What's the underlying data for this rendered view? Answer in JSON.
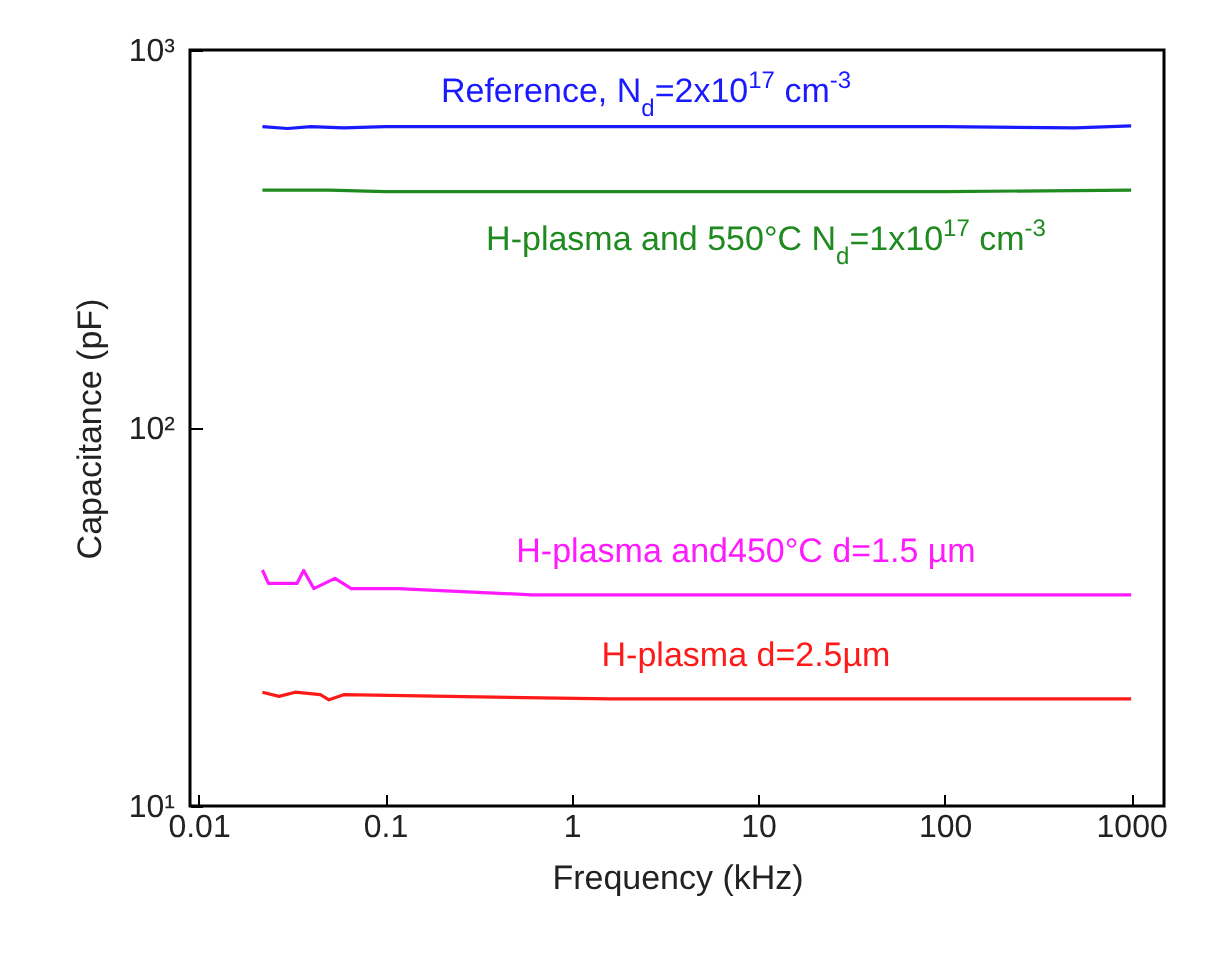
{
  "chart_data": {
    "type": "line",
    "xlabel": "Frequency (kHz)",
    "ylabel": "Capacitance (pF)",
    "log": "xy",
    "xlim": [
      0.009,
      1500
    ],
    "xticks": [
      0.01,
      0.1,
      1,
      10,
      100,
      1000
    ],
    "ylim": [
      10,
      1000
    ],
    "yticks": [
      {
        "value": 10,
        "label": "10¹"
      },
      {
        "value": 100,
        "label": "10²"
      },
      {
        "value": 1000,
        "label": "10³"
      }
    ],
    "grid": false,
    "legend": false,
    "marker": "none",
    "line_style": "solid",
    "series": [
      {
        "name": "Reference, N$_{d}$=2x10$^{17}$ cm$^{-3}$",
        "color": "#1a1aff",
        "x": [
          0.022,
          0.03,
          0.04,
          0.06,
          0.1,
          1,
          10,
          100,
          500,
          1000
        ],
        "values": [
          627,
          620,
          627,
          622,
          627,
          627,
          627,
          627,
          622,
          630
        ]
      },
      {
        "name": "H-plasma and 550°C N$_{d}$=1x10$^{17}$ cm$^{-3}$",
        "color": "#1f8a1f",
        "x": [
          0.022,
          0.05,
          0.1,
          1,
          10,
          100,
          1000
        ],
        "values": [
          426,
          426,
          422,
          422,
          422,
          422,
          426
        ]
      },
      {
        "name": "H-plasma and450°C d=1.5 µm",
        "color": "#ff1aff",
        "x": [
          0.022,
          0.0237,
          0.0337,
          0.0366,
          0.0415,
          0.0538,
          0.066,
          0.117,
          0.61,
          10,
          100,
          1000
        ],
        "values": [
          42.1,
          38.8,
          38.8,
          42,
          37.6,
          40,
          37.6,
          37.6,
          36.2,
          36.2,
          36.2,
          36.2
        ]
      },
      {
        "name": "H-plasma d=2.5µm",
        "color": "#ff1a1a",
        "x": [
          0.022,
          0.027,
          0.033,
          0.045,
          0.05,
          0.06,
          1.6,
          10,
          100,
          1000
        ],
        "values": [
          20,
          19.5,
          20,
          19.7,
          19.1,
          19.7,
          19.2,
          19.2,
          19.2,
          19.2
        ]
      }
    ]
  }
}
